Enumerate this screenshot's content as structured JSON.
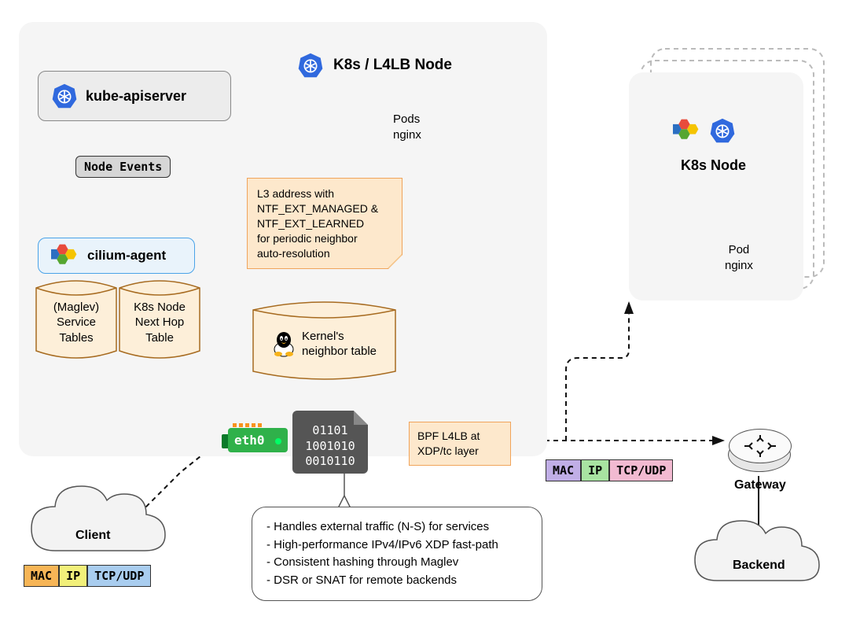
{
  "diagram": {
    "main_area_bg": "#f5f5f5",
    "k8s_color": "#3069de",
    "orange": "#f0a45b",
    "orange_fill": "#fde8cc",
    "cyl_fill": "#fdefd9",
    "blue_fill": "#e9f3fb",
    "blue_border": "#4aa3e8"
  },
  "nodes": {
    "kube_apiserver": "kube-apiserver",
    "node_events": "Node Events",
    "cilium_agent": "cilium-agent",
    "maglev_tables": "(Maglev)\nService\nTables",
    "next_hop": "K8s Node\nNext Hop\nTable",
    "kernel_neighbor": "Kernel's\nneighbor table",
    "l4lb_title": "K8s / L4LB Node",
    "pods_nginx": "Pods\nnginx",
    "l3_note": "L3 address with\nNTF_EXT_MANAGED &\nNTF_EXT_LEARNED\nfor periodic neighbor\nauto-resolution",
    "bpf_note": "BPF L4LB at\nXDP/tc layer",
    "binary": "01101\n1001010\n0010110",
    "eth0": "eth0",
    "client": "Client",
    "gateway": "Gateway",
    "backend": "Backend",
    "k8s_node": "K8s Node",
    "pod_nginx": "Pod\nnginx",
    "callout": [
      "- Handles external traffic (N-S) for services",
      "- High-performance IPv4/IPv6 XDP fast-path",
      "- Consistent hashing through Maglev",
      "- DSR or SNAT for remote backends"
    ]
  },
  "packets": {
    "client": [
      {
        "label": "MAC",
        "bg": "#f7b556"
      },
      {
        "label": "IP",
        "bg": "#f2f07a"
      },
      {
        "label": "TCP/UDP",
        "bg": "#a9cdef"
      }
    ],
    "gateway": [
      {
        "label": "MAC",
        "bg": "#c0aee6"
      },
      {
        "label": "IP",
        "bg": "#a8e3a1"
      },
      {
        "label": "TCP/UDP",
        "bg": "#f2bad1"
      }
    ]
  }
}
